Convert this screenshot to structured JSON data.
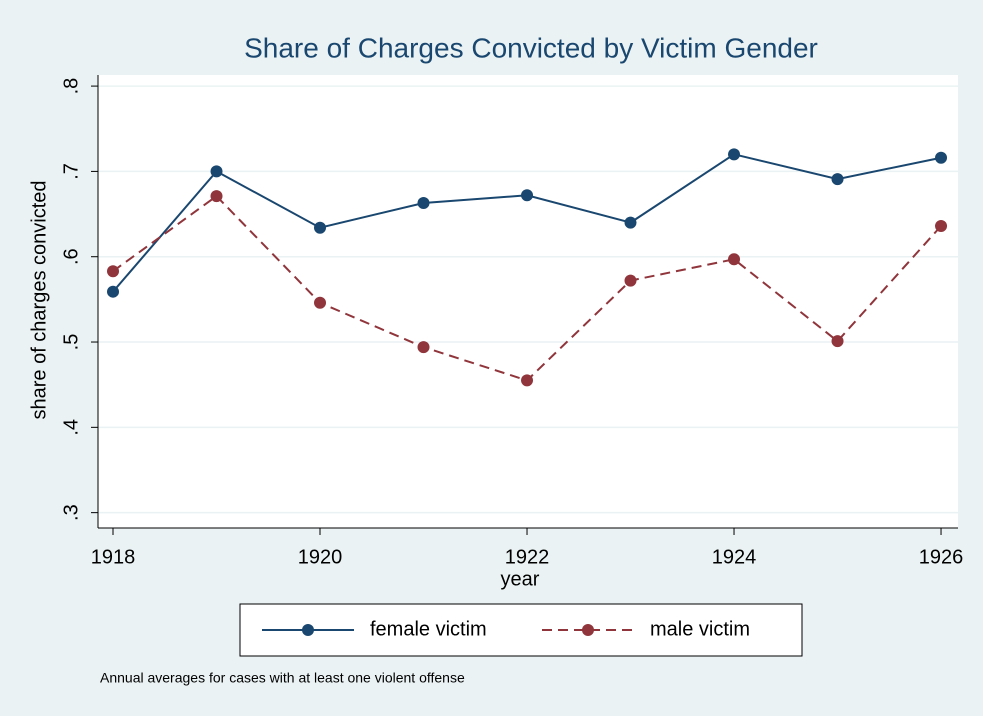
{
  "chart_data": {
    "type": "line",
    "title": "Share of Charges Convicted by Victim Gender",
    "x_label": "year",
    "y_label": "share of charges convicted",
    "note": "Annual averages for cases with at least one violent offense",
    "x": [
      1918,
      1919,
      1920,
      1921,
      1922,
      1923,
      1924,
      1925,
      1926
    ],
    "series": [
      {
        "name": "female victim",
        "color": "#1a476f",
        "dash": false,
        "values": [
          0.559,
          0.7,
          0.634,
          0.663,
          0.672,
          0.64,
          0.72,
          0.691,
          0.716
        ]
      },
      {
        "name": "male victim",
        "color": "#90353b",
        "dash": true,
        "values": [
          0.583,
          0.671,
          0.546,
          0.494,
          0.455,
          0.572,
          0.597,
          0.501,
          0.636
        ]
      }
    ],
    "xlim": [
      1917.855,
      1926.164
    ],
    "xticks": [
      1918,
      1920,
      1922,
      1924,
      1926
    ],
    "ylim": [
      0.282,
      0.813
    ],
    "yticks": [
      {
        "value": 0.3,
        "label": ".3"
      },
      {
        "value": 0.4,
        "label": ".4"
      },
      {
        "value": 0.5,
        "label": ".5"
      },
      {
        "value": 0.6,
        "label": ".6"
      },
      {
        "value": 0.7,
        "label": ".7"
      },
      {
        "value": 0.8,
        "label": ".8"
      }
    ],
    "grid": true,
    "legend": "bottom"
  }
}
